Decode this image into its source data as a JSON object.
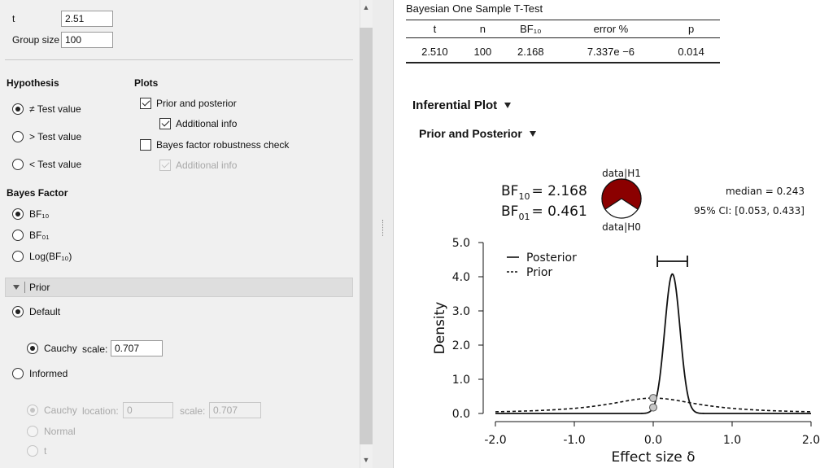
{
  "options": {
    "t_label": "t",
    "t_value": "2.51",
    "group_size_label": "Group size",
    "group_size_value": "100",
    "hypothesis": {
      "title": "Hypothesis",
      "items": [
        {
          "label": "≠ Test value",
          "selected": true
        },
        {
          "label": "> Test value",
          "selected": false
        },
        {
          "label": "< Test value",
          "selected": false
        }
      ]
    },
    "plots": {
      "title": "Plots",
      "prior_posterior": "Prior and posterior",
      "additional_info": "Additional info",
      "robustness": "Bayes factor robustness check",
      "robustness_additional_info": "Additional info"
    },
    "bayes_factor": {
      "title": "Bayes Factor",
      "items": [
        {
          "label": "BF₁₀",
          "selected": true
        },
        {
          "label": "BF₀₁",
          "selected": false
        },
        {
          "label": "Log(BF₁₀)",
          "selected": false
        }
      ]
    },
    "prior": {
      "header": "Prior",
      "default_label": "Default",
      "cauchy_label": "Cauchy",
      "scale_label": "scale:",
      "scale_value": "0.707",
      "informed_label": "Informed",
      "informed_cauchy_label": "Cauchy",
      "location_label": "location:",
      "location_value": "0",
      "informed_scale_label": "scale:",
      "informed_scale_value": "0.707",
      "normal_label": "Normal",
      "t_label": "t"
    }
  },
  "results": {
    "table_title": "Bayesian One Sample T-Test",
    "columns": [
      "t",
      "n",
      "BF₁₀",
      "error %",
      "p"
    ],
    "row": [
      "2.510",
      "100",
      "2.168",
      "7.337e −6",
      "0.014"
    ],
    "inferential_plot_heading": "Inferential Plot",
    "prior_posterior_heading": "Prior and Posterior"
  },
  "chart_data": {
    "type": "line",
    "xlabel": "Effect size δ",
    "ylabel": "Density",
    "xlim": [
      -2.0,
      2.0
    ],
    "ylim": [
      0.0,
      5.0
    ],
    "x_ticks": [
      "-2.0",
      "-1.0",
      "0.0",
      "1.0",
      "2.0"
    ],
    "y_ticks": [
      "0.0",
      "1.0",
      "2.0",
      "3.0",
      "4.0",
      "5.0"
    ],
    "legend": [
      "Posterior",
      "Prior"
    ],
    "legend_position": "top-left",
    "posterior": {
      "median": 0.243,
      "ci_lower": 0.053,
      "ci_upper": 0.433,
      "peak_density": 4.08
    },
    "prior": {
      "distribution": "Cauchy",
      "location": 0,
      "scale": 0.707
    },
    "bf10_label": "BF",
    "bf10_sub": "10",
    "bf10_value": "= 2.168",
    "bf01_label": "BF",
    "bf01_sub": "01",
    "bf01_value": "= 0.461",
    "pie_top_label": "data|H1",
    "pie_bottom_label": "data|H0",
    "pie_h1_fraction": 0.684,
    "pie_colors": {
      "h1": "#8b0000",
      "h0": "#ffffff"
    },
    "median_text": "median = 0.243",
    "ci_text": "95% CI: [0.053, 0.433]"
  }
}
